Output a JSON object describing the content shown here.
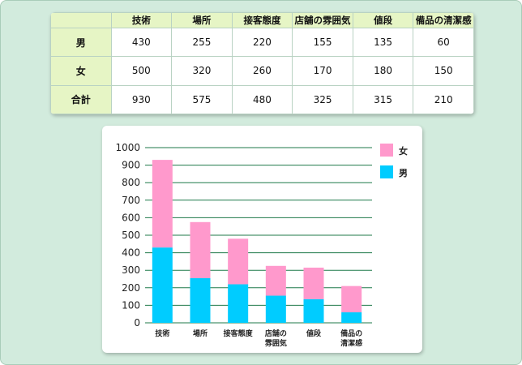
{
  "table": {
    "headers": [
      "",
      "技術",
      "場所",
      "接客態度",
      "店舗の雰囲気",
      "値段",
      "備品の清潔感"
    ],
    "rows": [
      {
        "label": "男",
        "cells": [
          "430",
          "255",
          "220",
          "155",
          "135",
          "60"
        ]
      },
      {
        "label": "女",
        "cells": [
          "500",
          "320",
          "260",
          "170",
          "180",
          "150"
        ]
      },
      {
        "label": "合計",
        "cells": [
          "930",
          "575",
          "480",
          "325",
          "315",
          "210"
        ]
      }
    ]
  },
  "chart_data": {
    "type": "bar",
    "stacked": true,
    "categories": [
      "技術",
      "場所",
      "接客態度",
      "店舗の\n雰囲気",
      "値段",
      "備品の\n清潔感"
    ],
    "series": [
      {
        "name": "男",
        "values": [
          430,
          255,
          220,
          155,
          135,
          60
        ],
        "color": "#00ccff"
      },
      {
        "name": "女",
        "values": [
          500,
          320,
          260,
          170,
          180,
          150
        ],
        "color": "#ff99cc"
      }
    ],
    "ylim": [
      0,
      1000
    ],
    "yticks": [
      0,
      100,
      200,
      300,
      400,
      500,
      600,
      700,
      800,
      900,
      1000
    ],
    "grid": true,
    "legend": "top-right",
    "legend_order": [
      "女",
      "男"
    ]
  }
}
